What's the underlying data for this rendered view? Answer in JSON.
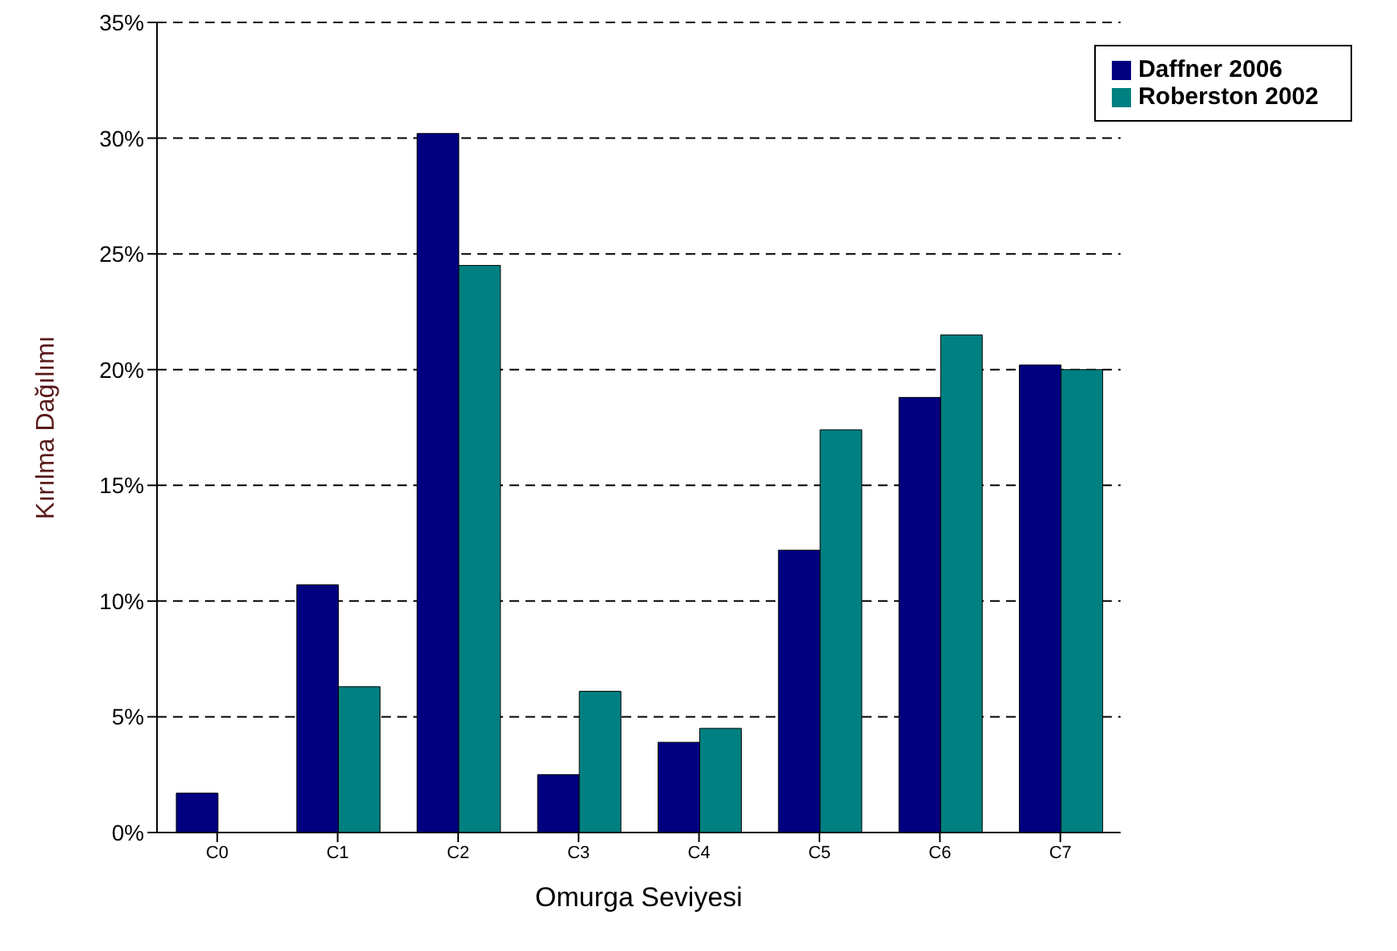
{
  "chart_data": {
    "type": "bar",
    "xlabel": "Omurga Seviyesi",
    "ylabel": "Kırılma Dağılımı",
    "categories": [
      "C0",
      "C1",
      "C2",
      "C3",
      "C4",
      "C5",
      "C6",
      "C7"
    ],
    "series": [
      {
        "name": "Daffner 2006",
        "color": "#000080",
        "values": [
          1.7,
          10.7,
          30.2,
          2.5,
          3.9,
          12.2,
          18.8,
          20.2
        ]
      },
      {
        "name": "Roberston 2002",
        "color": "#008080",
        "values": [
          null,
          6.3,
          24.5,
          6.1,
          4.5,
          17.4,
          21.5,
          20.0
        ]
      }
    ],
    "ylim": [
      0,
      35
    ],
    "yticks": [
      {
        "value": 0,
        "label": "0%"
      },
      {
        "value": 5,
        "label": "5%"
      },
      {
        "value": 10,
        "label": "10%"
      },
      {
        "value": 15,
        "label": "15%"
      },
      {
        "value": 20,
        "label": "20%"
      },
      {
        "value": 25,
        "label": "25%"
      },
      {
        "value": 30,
        "label": "30%"
      },
      {
        "value": 35,
        "label": "35%"
      }
    ],
    "grid": "y",
    "legend": "top right"
  }
}
